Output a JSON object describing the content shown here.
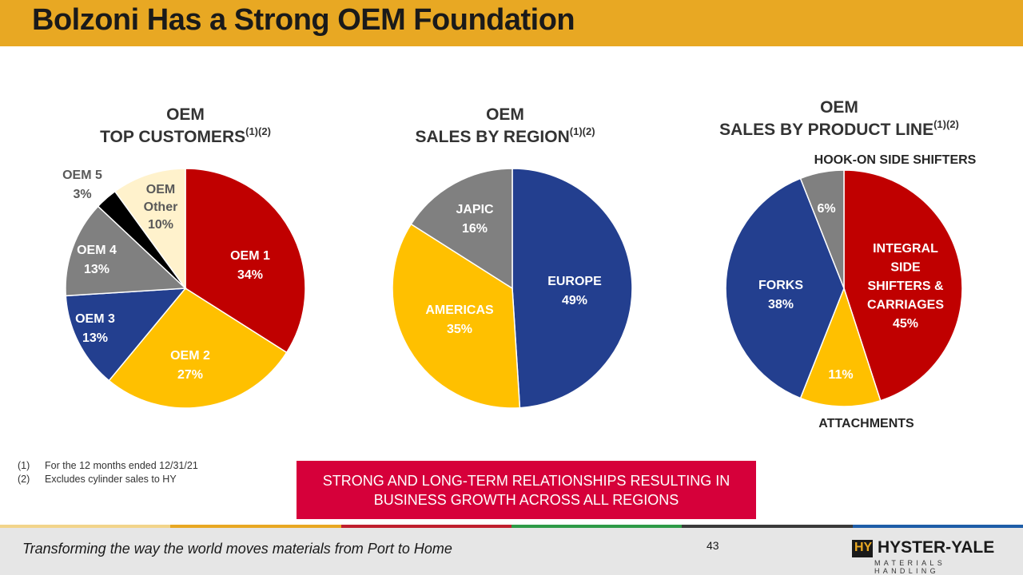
{
  "header": {
    "title": "Bolzoni Has a Strong OEM Foundation"
  },
  "chart_data": [
    {
      "type": "pie",
      "title_line1": "OEM",
      "title_line2": "TOP CUSTOMERS",
      "title_sup": "(1)(2)",
      "slices": [
        {
          "label": "OEM 1",
          "value": 34,
          "pct_label": "34%",
          "color": "#c00000"
        },
        {
          "label": "OEM 2",
          "value": 27,
          "pct_label": "27%",
          "color": "#ffc000"
        },
        {
          "label": "OEM 3",
          "value": 13,
          "pct_label": "13%",
          "color": "#233f8f"
        },
        {
          "label": "OEM 4",
          "value": 13,
          "pct_label": "13%",
          "color": "#808080"
        },
        {
          "label": "OEM 5",
          "value": 3,
          "pct_label": "3%",
          "color": "#000000"
        },
        {
          "label": "OEM Other",
          "value": 10,
          "pct_label": "10%",
          "color": "#fff2cc"
        }
      ]
    },
    {
      "type": "pie",
      "title_line1": "OEM",
      "title_line2": "SALES BY REGION",
      "title_sup": "(1)(2)",
      "slices": [
        {
          "label": "EUROPE",
          "value": 49,
          "pct_label": "49%",
          "color": "#233f8f"
        },
        {
          "label": "AMERICAS",
          "value": 35,
          "pct_label": "35%",
          "color": "#ffc000"
        },
        {
          "label": "JAPIC",
          "value": 16,
          "pct_label": "16%",
          "color": "#808080"
        }
      ]
    },
    {
      "type": "pie",
      "title_line1": "OEM",
      "title_line2": "SALES BY PRODUCT LINE",
      "title_sup": "(1)(2)",
      "slices": [
        {
          "label": "INTEGRAL SIDE SHIFTERS & CARRIAGES",
          "value": 45,
          "pct_label": "45%",
          "color": "#c00000"
        },
        {
          "label": "ATTACHMENTS",
          "value": 11,
          "pct_label": "11%",
          "color": "#ffc000"
        },
        {
          "label": "FORKS",
          "value": 38,
          "pct_label": "38%",
          "color": "#233f8f"
        },
        {
          "label": "HOOK-ON SIDE SHIFTERS",
          "value": 6,
          "pct_label": "6%",
          "color": "#808080"
        }
      ]
    }
  ],
  "footnotes": [
    {
      "num": "(1)",
      "text": "For the 12 months ended 12/31/21"
    },
    {
      "num": "(2)",
      "text": "Excludes cylinder sales to HY"
    }
  ],
  "banner": {
    "line1": "STRONG AND LONG-TERM RELATIONSHIPS RESULTING IN",
    "line2": "BUSINESS GROWTH ACROSS ALL REGIONS"
  },
  "footer": {
    "tagline": "Transforming the way the world moves materials from Port to Home",
    "page_number": "43",
    "logo": {
      "mark": "HY",
      "brand": "HYSTER-YALE",
      "sub": "MATERIALS HANDLING"
    },
    "stripe_colors": [
      "#f2d48a",
      "#e8a823",
      "#c0202e",
      "#2e9a47",
      "#3a3a3a",
      "#1e5da8"
    ]
  }
}
